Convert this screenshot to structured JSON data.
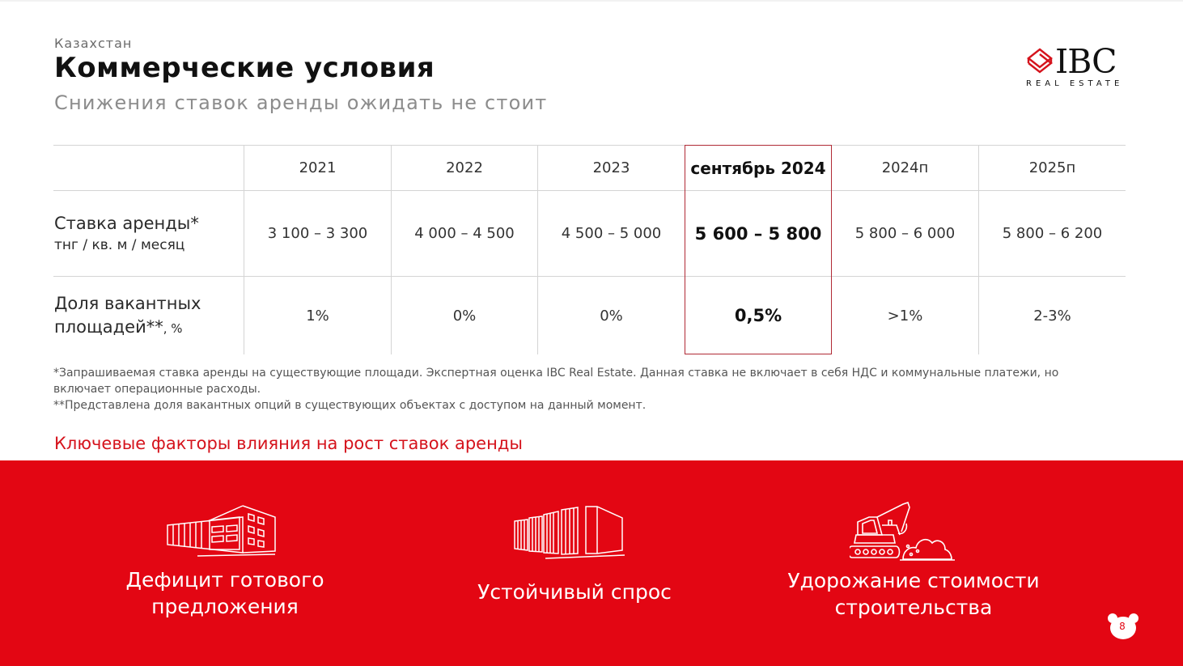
{
  "header": {
    "country": "Казахстан",
    "title": "Коммерческие условия",
    "subtitle": "Снижения ставок аренды ожидать не стоит"
  },
  "logo": {
    "name": "IBC",
    "tagline": "REAL ESTATE"
  },
  "table": {
    "columns": [
      "2021",
      "2022",
      "2023",
      "сентябрь 2024",
      "2024п",
      "2025п"
    ],
    "highlighted_column": "сентябрь 2024",
    "rows": [
      {
        "label": "Ставка аренды*",
        "unit": "тнг / кв. м / месяц",
        "values": [
          "3 100 – 3 300",
          "4 000 – 4 500",
          "4 500 – 5 000",
          "5 600 – 5 800",
          "5 800 – 6 000",
          "5 800 – 6 200"
        ]
      },
      {
        "label_line1": "Доля вакантных",
        "label_line2": "площадей**",
        "unit": ", %",
        "values": [
          "1%",
          "0%",
          "0%",
          "0,5%",
          ">1%",
          "2-3%"
        ]
      }
    ]
  },
  "notes": {
    "note1": "*Запрашиваемая ставка аренды на существующие площади. Экспертная оценка IBC Real Estate. Данная ставка не включает в себя НДС и коммунальные платежи, но включает операционные расходы.",
    "note2": "**Представлена доля вакантных опций в существующих объектах с доступом на данный момент."
  },
  "factors": {
    "title": "Ключевые факторы влияния на рост ставок аренды",
    "items": [
      {
        "line1": "Дефицит готового",
        "line2": "предложения",
        "icon": "building-icon"
      },
      {
        "line1": "Устойчивый спрос",
        "line2": "",
        "icon": "skyline-icon"
      },
      {
        "line1": "Удорожание стоимости",
        "line2": "строительства",
        "icon": "excavator-icon"
      }
    ]
  },
  "page": {
    "number": "8"
  },
  "colors": {
    "accent": "#e30613",
    "highlight_border": "#b02a35",
    "subtitle_gray": "#8c8c8c"
  }
}
